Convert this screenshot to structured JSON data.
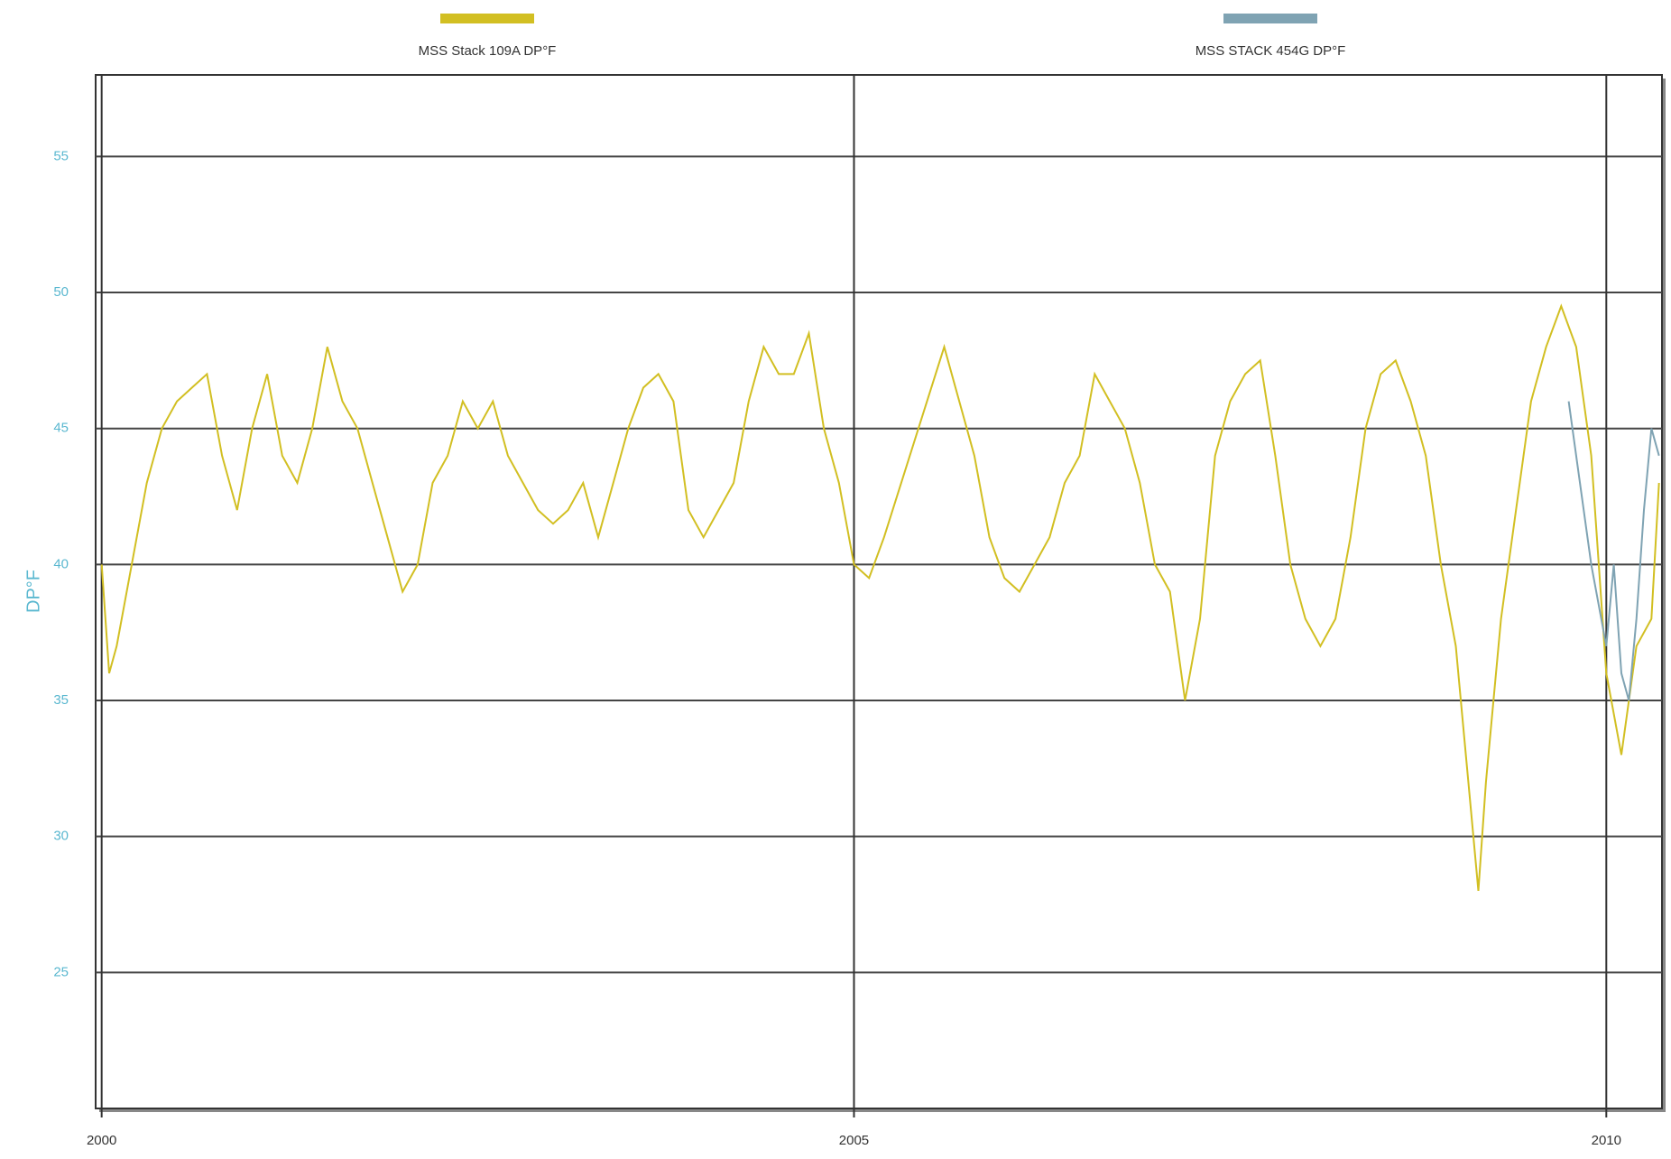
{
  "chart_data": {
    "type": "line",
    "ylabel": "DP°F",
    "xlim": [
      1999.96,
      2010.37
    ],
    "ylim": [
      20,
      58
    ],
    "xticks": [
      2000,
      2005,
      2010
    ],
    "yticks": [
      25,
      30,
      35,
      40,
      45,
      50,
      55
    ],
    "grid": true,
    "legend": "top",
    "series": [
      {
        "name": "MSS Stack 109A DP°F",
        "color": "#d2bf22",
        "x": [
          2000.0,
          2000.05,
          2000.1,
          2000.2,
          2000.3,
          2000.4,
          2000.5,
          2000.6,
          2000.7,
          2000.8,
          2000.9,
          2001.0,
          2001.1,
          2001.2,
          2001.3,
          2001.4,
          2001.5,
          2001.6,
          2001.7,
          2001.8,
          2001.9,
          2002.0,
          2002.1,
          2002.2,
          2002.3,
          2002.4,
          2002.5,
          2002.6,
          2002.7,
          2002.8,
          2002.9,
          2003.0,
          2003.1,
          2003.2,
          2003.3,
          2003.4,
          2003.5,
          2003.6,
          2003.7,
          2003.8,
          2003.9,
          2004.0,
          2004.1,
          2004.2,
          2004.3,
          2004.4,
          2004.5,
          2004.6,
          2004.7,
          2004.8,
          2004.9,
          2005.0,
          2005.1,
          2005.2,
          2005.6,
          2005.7,
          2005.8,
          2005.9,
          2006.0,
          2006.1,
          2006.2,
          2006.3,
          2006.4,
          2006.5,
          2006.6,
          2006.7,
          2006.8,
          2006.9,
          2007.0,
          2007.1,
          2007.2,
          2007.3,
          2007.4,
          2007.5,
          2007.6,
          2007.7,
          2007.8,
          2007.9,
          2008.0,
          2008.1,
          2008.2,
          2008.3,
          2008.4,
          2008.5,
          2008.6,
          2008.7,
          2008.8,
          2008.9,
          2009.0,
          2009.1,
          2009.15,
          2009.2,
          2009.3,
          2009.4,
          2009.5,
          2009.6,
          2009.7,
          2009.8,
          2009.9,
          2010.0,
          2010.1,
          2010.2,
          2010.3,
          2010.35
        ],
        "values": [
          40,
          36,
          37,
          40,
          43,
          45,
          46,
          46.5,
          47,
          44,
          42,
          45,
          47,
          44,
          43,
          45,
          48,
          46,
          45,
          43,
          41,
          39,
          40,
          43,
          44,
          46,
          45,
          46,
          44,
          43,
          42,
          41.5,
          42,
          43,
          41,
          43,
          45,
          46.5,
          47,
          46,
          42,
          41,
          42,
          43,
          46,
          48,
          47,
          47,
          48.5,
          45,
          43,
          40,
          39.5,
          41,
          48,
          46,
          44,
          41,
          39.5,
          39,
          40,
          41,
          43,
          44,
          47,
          46,
          45,
          43,
          40,
          39,
          35,
          38,
          44,
          46,
          47,
          47.5,
          44,
          40,
          38,
          37,
          38,
          41,
          45,
          47,
          47.5,
          46,
          44,
          40,
          37,
          31,
          28,
          32,
          38,
          42,
          46,
          48,
          49.5,
          48,
          44,
          36,
          33,
          37,
          38,
          43
        ]
      },
      {
        "name": "MSS STACK 454G DP°F",
        "color": "#7fa3b3",
        "x": [
          2009.75,
          2009.8,
          2009.9,
          2010.0,
          2010.05,
          2010.1,
          2010.15,
          2010.2,
          2010.25,
          2010.3,
          2010.35
        ],
        "values": [
          46,
          44,
          40,
          37,
          40,
          36,
          35,
          38,
          42,
          45,
          44
        ]
      }
    ]
  }
}
